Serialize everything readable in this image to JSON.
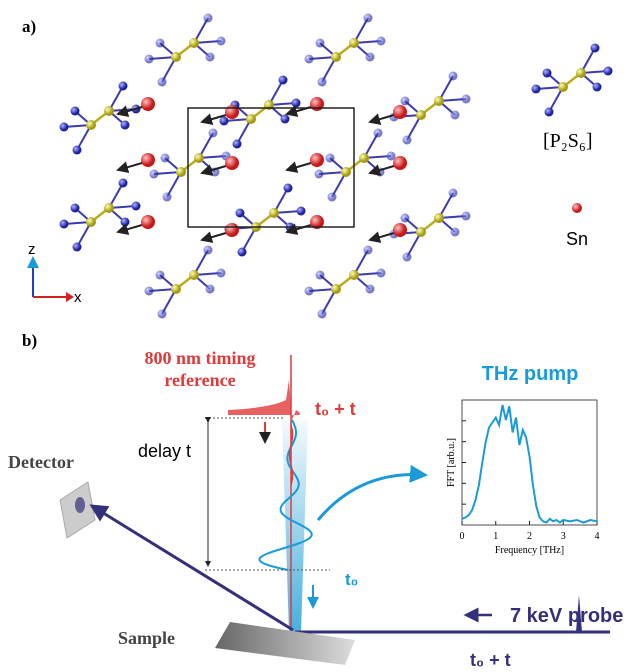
{
  "panel_a": {
    "label": "a)",
    "legend_unit": "[P₂S₆]",
    "legend_atom": "Sn",
    "axis_z": "z",
    "axis_x": "x"
  },
  "panel_b": {
    "label": "b)",
    "timing_reference": [
      "800 nm timing",
      "reference"
    ],
    "thz_pump": "THz pump",
    "t0_plus_t_top": "t₀ + t",
    "delay": "delay t",
    "detector": "Detector",
    "t0": "t₀",
    "probe": "7 keV probe",
    "sample": "Sample",
    "t0_plus_t_bottom": "t₀ + t"
  },
  "chart_data": {
    "type": "line",
    "xlabel": "Frequency [THz]",
    "ylabel": "FFT [arb.u.]",
    "x": [
      0,
      0.1,
      0.2,
      0.3,
      0.4,
      0.5,
      0.6,
      0.7,
      0.8,
      0.9,
      1.0,
      1.1,
      1.2,
      1.3,
      1.4,
      1.5,
      1.6,
      1.7,
      1.8,
      1.9,
      2.0,
      2.1,
      2.2,
      2.3,
      2.4,
      2.5,
      2.6,
      2.7,
      2.8,
      2.9,
      3.0,
      3.2,
      3.4,
      3.6,
      3.8,
      4.0
    ],
    "series": [
      {
        "color": "#1a9bd7",
        "values": [
          0.05,
          0.06,
          0.08,
          0.12,
          0.2,
          0.32,
          0.5,
          0.66,
          0.78,
          0.82,
          0.86,
          0.8,
          0.96,
          0.84,
          0.95,
          0.74,
          0.86,
          0.64,
          0.76,
          0.7,
          0.55,
          0.32,
          0.15,
          0.06,
          0.03,
          0.02,
          0.05,
          0.03,
          0.04,
          0.02,
          0.04,
          0.03,
          0.04,
          0.02,
          0.04,
          0.03
        ]
      }
    ],
    "xlim": [
      0,
      4
    ],
    "xticks": [
      0,
      1,
      2,
      3,
      4
    ],
    "ylim": [
      0,
      1
    ]
  }
}
